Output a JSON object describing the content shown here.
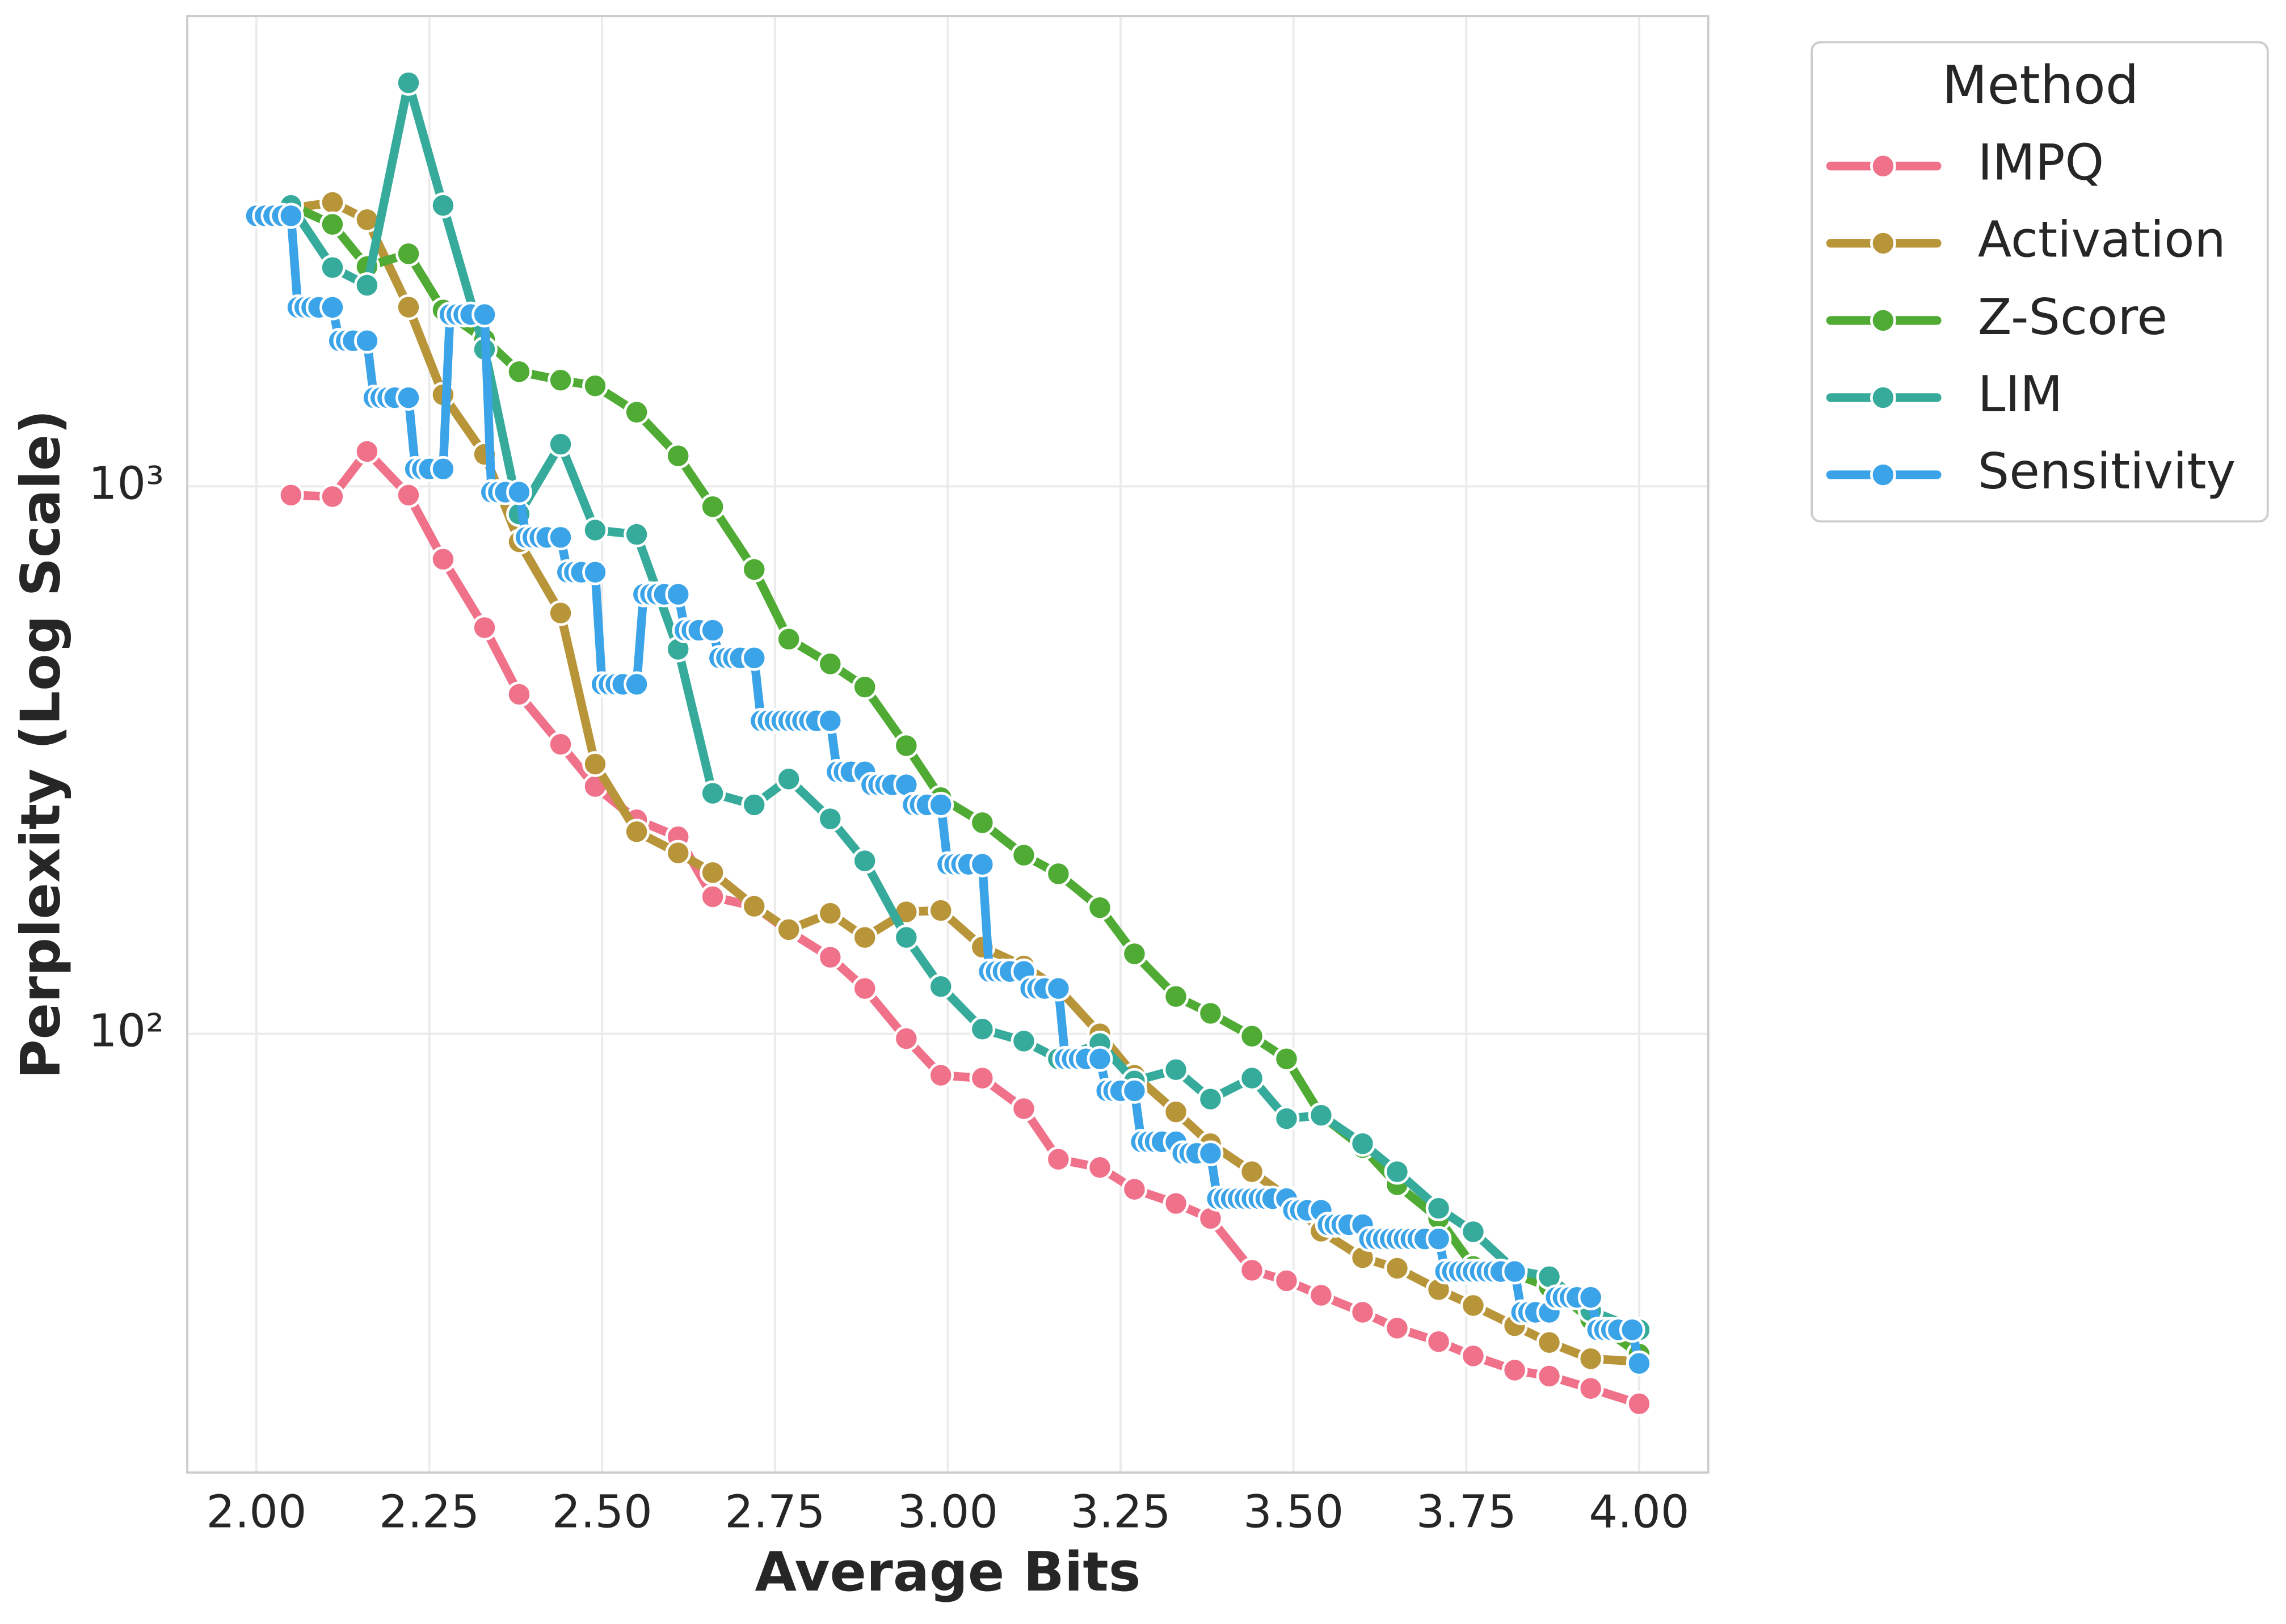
{
  "chart_data": {
    "type": "line",
    "x_label": "Average Bits",
    "y_label": "Perplexity (Log Scale)",
    "yscale": "log",
    "grid": true,
    "legend": "outside-right",
    "legend_title": "Method",
    "xlim": [
      1.9,
      4.1
    ],
    "ylim": [
      15.8,
      7230
    ],
    "xticks": [
      {
        "value": 2,
        "label": "2.00"
      },
      {
        "value": 2.25,
        "label": "2.25"
      },
      {
        "value": 2.5,
        "label": "2.50"
      },
      {
        "value": 2.75,
        "label": "2.75"
      },
      {
        "value": 3,
        "label": "3.00"
      },
      {
        "value": 3.25,
        "label": "3.25"
      },
      {
        "value": 3.5,
        "label": "3.50"
      },
      {
        "value": 3.75,
        "label": "3.75"
      },
      {
        "value": 4,
        "label": "4.00"
      }
    ],
    "yticks": [
      {
        "value": 100,
        "label": "10²"
      },
      {
        "value": 1000,
        "label": "10³"
      }
    ],
    "series": [
      {
        "name": "IMPQ",
        "color": "#f0718a",
        "x": [
          2.05,
          2.11,
          2.16,
          2.22,
          2.27,
          2.33,
          2.38,
          2.44,
          2.49,
          2.55,
          2.61,
          2.66,
          2.72,
          2.77,
          2.83,
          2.88,
          2.94,
          2.99,
          3.05,
          3.11,
          3.16,
          3.22,
          3.27,
          3.33,
          3.38,
          3.44,
          3.49,
          3.54,
          3.6,
          3.65,
          3.71,
          3.76,
          3.82,
          3.87,
          3.93,
          4.0
        ],
        "values": [
          964,
          958,
          1158,
          964,
          736,
          552,
          417,
          338,
          283,
          246,
          229,
          178,
          171,
          154,
          138,
          121,
          98,
          84,
          83,
          73,
          59,
          57,
          52,
          49,
          46,
          37,
          35.4,
          33.3,
          31,
          29,
          27.4,
          25.8,
          24.3,
          23.7,
          22.5,
          21.1
        ]
      },
      {
        "name": "Activation",
        "color": "#b99539",
        "x": [
          2.05,
          2.11,
          2.16,
          2.22,
          2.27,
          2.33,
          2.38,
          2.44,
          2.49,
          2.55,
          2.61,
          2.66,
          2.72,
          2.77,
          2.83,
          2.88,
          2.94,
          2.99,
          3.05,
          3.11,
          3.16,
          3.22,
          3.27,
          3.33,
          3.38,
          3.44,
          3.49,
          3.54,
          3.6,
          3.65,
          3.71,
          3.76,
          3.82,
          3.87,
          3.93,
          4.0
        ],
        "values": [
          3220,
          3300,
          3070,
          2125,
          1470,
          1144,
          792,
          587,
          311,
          234,
          214,
          197,
          171,
          155,
          166,
          150,
          167,
          168,
          144,
          133,
          121,
          100,
          84,
          72,
          63,
          56,
          50.4,
          43.6,
          39,
          37.3,
          34.1,
          31.9,
          29.3,
          27.3,
          25.5,
          25.2
        ]
      },
      {
        "name": "Z-Score",
        "color": "#4fab33",
        "x": [
          2.05,
          2.11,
          2.16,
          2.22,
          2.27,
          2.33,
          2.38,
          2.44,
          2.49,
          2.55,
          2.61,
          2.66,
          2.72,
          2.77,
          2.83,
          2.88,
          2.94,
          2.99,
          3.05,
          3.11,
          3.16,
          3.22,
          3.27,
          3.33,
          3.38,
          3.44,
          3.49,
          3.54,
          3.6,
          3.65,
          3.71,
          3.76,
          3.82,
          3.87,
          3.93,
          4.0
        ],
        "values": [
          3260,
          3010,
          2520,
          2660,
          2100,
          1855,
          1620,
          1563,
          1526,
          1366,
          1137,
          918,
          705,
          526,
          474,
          430,
          336,
          270,
          243,
          212,
          196,
          170,
          140,
          117,
          109,
          99,
          90,
          71,
          62,
          53,
          46,
          37.6,
          36.4,
          34.5,
          30.1,
          26
        ]
      },
      {
        "name": "LIM",
        "color": "#36ab9c",
        "x": [
          2.05,
          2.11,
          2.16,
          2.22,
          2.27,
          2.33,
          2.38,
          2.44,
          2.49,
          2.55,
          2.61,
          2.66,
          2.72,
          2.77,
          2.83,
          2.88,
          2.94,
          2.99,
          3.05,
          3.11,
          3.16,
          3.22,
          3.27,
          3.33,
          3.38,
          3.44,
          3.49,
          3.54,
          3.6,
          3.65,
          3.71,
          3.76,
          3.82,
          3.87,
          3.93,
          4.0
        ],
        "values": [
          3260,
          2510,
          2330,
          5460,
          3260,
          1780,
          890,
          1194,
          832,
          817,
          504,
          275,
          262,
          292,
          247,
          207,
          150,
          122,
          102,
          97,
          90,
          96,
          82,
          86,
          76,
          83,
          70,
          71,
          63,
          56,
          48,
          43.5,
          37,
          36,
          31.2,
          28.8
        ]
      },
      {
        "name": "Sensitivity",
        "color": "#3ba3e8",
        "x": [
          2.0,
          2.0125,
          2.025,
          2.0375,
          2.05,
          2.06,
          2.07,
          2.08,
          2.09,
          2.11,
          2.12,
          2.13,
          2.14,
          2.16,
          2.17,
          2.18,
          2.19,
          2.2,
          2.22,
          2.23,
          2.24,
          2.25,
          2.27,
          2.28,
          2.29,
          2.3,
          2.31,
          2.33,
          2.34,
          2.35,
          2.36,
          2.38,
          2.39,
          2.4,
          2.41,
          2.42,
          2.44,
          2.45,
          2.46,
          2.47,
          2.49,
          2.5,
          2.51,
          2.52,
          2.53,
          2.55,
          2.56,
          2.57,
          2.58,
          2.59,
          2.61,
          2.62,
          2.63,
          2.64,
          2.66,
          2.67,
          2.68,
          2.69,
          2.7,
          2.72,
          2.73,
          2.74,
          2.75,
          2.76,
          2.77,
          2.78,
          2.79,
          2.8,
          2.81,
          2.83,
          2.84,
          2.85,
          2.86,
          2.88,
          2.89,
          2.9,
          2.91,
          2.92,
          2.94,
          2.95,
          2.96,
          2.97,
          2.99,
          3.0,
          3.01,
          3.02,
          3.03,
          3.05,
          3.06,
          3.07,
          3.08,
          3.09,
          3.11,
          3.12,
          3.13,
          3.14,
          3.16,
          3.17,
          3.18,
          3.19,
          3.2,
          3.22,
          3.23,
          3.24,
          3.25,
          3.27,
          3.28,
          3.29,
          3.3,
          3.31,
          3.33,
          3.34,
          3.35,
          3.36,
          3.38,
          3.39,
          3.4,
          3.41,
          3.42,
          3.43,
          3.44,
          3.45,
          3.46,
          3.47,
          3.49,
          3.5,
          3.51,
          3.52,
          3.54,
          3.55,
          3.56,
          3.57,
          3.58,
          3.6,
          3.61,
          3.62,
          3.63,
          3.64,
          3.65,
          3.66,
          3.67,
          3.68,
          3.69,
          3.71,
          3.72,
          3.73,
          3.74,
          3.75,
          3.76,
          3.77,
          3.78,
          3.79,
          3.8,
          3.82,
          3.83,
          3.84,
          3.85,
          3.87,
          3.88,
          3.89,
          3.9,
          3.91,
          3.93,
          3.94,
          3.95,
          3.96,
          3.97,
          3.99,
          4.0
        ],
        "values": [
          3120,
          3120,
          3120,
          3120,
          3120,
          2123,
          2123,
          2123,
          2123,
          2123,
          1845,
          1845,
          1845,
          1845,
          1452,
          1452,
          1452,
          1452,
          1452,
          1076,
          1076,
          1076,
          1076,
          2060,
          2060,
          2060,
          2060,
          2060,
          976,
          976,
          976,
          976,
          807,
          807,
          807,
          807,
          807,
          697,
          697,
          697,
          697,
          435,
          435,
          435,
          435,
          435,
          635,
          635,
          635,
          635,
          635,
          546,
          546,
          546,
          546,
          486,
          486,
          486,
          486,
          486,
          373,
          373,
          373,
          373,
          373,
          373,
          373,
          373,
          373,
          373,
          301,
          301,
          301,
          301,
          285,
          285,
          285,
          285,
          285,
          262,
          262,
          262,
          262,
          204,
          204,
          204,
          204,
          204,
          130,
          130,
          130,
          130,
          130,
          121,
          121,
          121,
          121,
          90,
          90,
          90,
          90,
          90,
          78.7,
          78.7,
          78.7,
          78.7,
          63.5,
          63.5,
          63.5,
          63.5,
          63.5,
          60.5,
          60.5,
          60.5,
          60.5,
          50,
          50,
          50,
          50,
          50,
          50,
          50,
          50,
          50,
          50,
          47.6,
          47.6,
          47.6,
          47.6,
          44.8,
          44.8,
          44.8,
          44.8,
          44.8,
          42.2,
          42.2,
          42.2,
          42.2,
          42.2,
          42.2,
          42.2,
          42.2,
          42.2,
          42.2,
          36.8,
          36.8,
          36.8,
          36.8,
          36.8,
          36.8,
          36.8,
          36.8,
          36.8,
          36.8,
          31,
          31,
          31,
          31,
          33,
          33,
          33,
          33,
          33,
          28.8,
          28.8,
          28.8,
          28.8,
          28.8,
          25
        ]
      }
    ]
  }
}
